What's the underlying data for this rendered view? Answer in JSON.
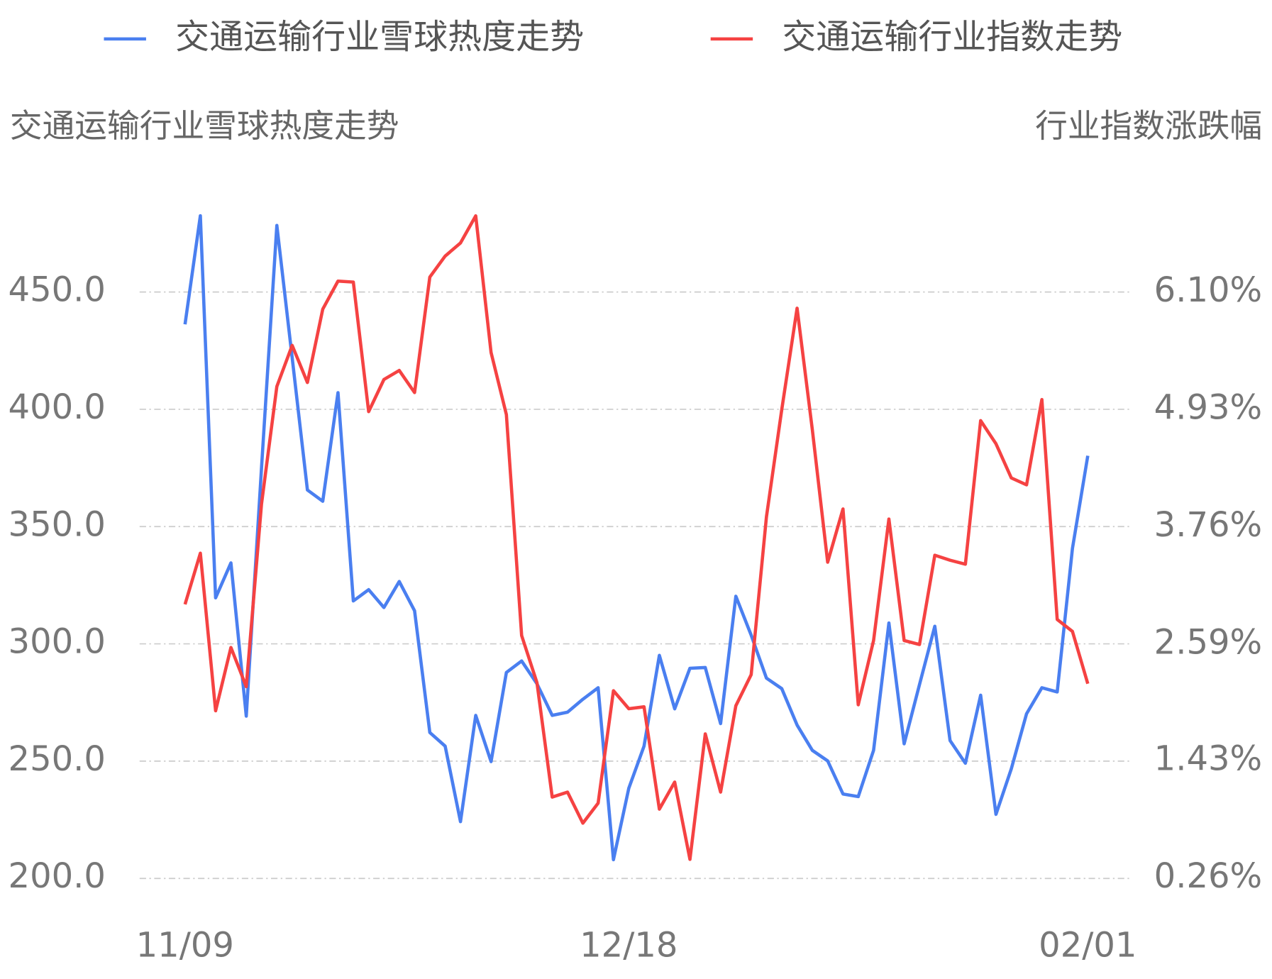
{
  "chart_data": {
    "type": "line",
    "y_label": "交通运输行业雪球热度走势",
    "y2_label": "行业指数涨跌幅",
    "categories": [
      "11/09",
      null,
      null,
      null,
      null,
      null,
      null,
      null,
      null,
      null,
      null,
      null,
      null,
      null,
      null,
      null,
      null,
      null,
      null,
      null,
      null,
      null,
      null,
      null,
      null,
      null,
      null,
      null,
      null,
      "12/18",
      null,
      null,
      null,
      null,
      null,
      null,
      null,
      null,
      null,
      null,
      null,
      null,
      null,
      null,
      null,
      null,
      null,
      null,
      null,
      null,
      null,
      null,
      null,
      null,
      null,
      null,
      null,
      null,
      null,
      "02/01"
    ],
    "series": [
      {
        "name": "交通运输行业雪球热度走势",
        "color": "#4a7ff0",
        "axis": "y",
        "values": [
          436.2,
          482.5,
          319.6,
          334.5,
          269.2,
          375,
          478.4,
          422,
          365.6,
          360.8,
          407.1,
          318.3,
          323.1,
          315.5,
          326.6,
          314.1,
          262.2,
          256.4,
          224.2,
          269.5,
          249.8,
          287.8,
          292.7,
          283.0,
          269.5,
          270.9,
          276.4,
          281.3,
          208.0,
          238.4,
          256.4,
          295.1,
          272.3,
          289.6,
          289.9,
          266.0,
          320.3,
          303.7,
          285.4,
          280.9,
          265.4,
          254.6,
          250.1,
          236.0,
          234.9,
          254.6,
          308.9,
          257.4,
          282.6,
          307.5,
          258.8,
          249.1,
          278.1,
          227.3,
          246.7,
          270.2,
          281.3,
          279.5,
          340.7,
          380.2
        ]
      },
      {
        "name": "交通运输行业指数走势",
        "color": "#f54242",
        "axis": "y2",
        "values": [
          2.99,
          3.5,
          1.93,
          2.56,
          2.17,
          3.99,
          5.16,
          5.57,
          5.2,
          5.93,
          6.21,
          6.2,
          4.91,
          5.23,
          5.32,
          5.1,
          6.25,
          6.46,
          6.59,
          6.86,
          5.5,
          4.88,
          2.68,
          2.21,
          1.07,
          1.12,
          0.81,
          1.01,
          2.13,
          1.95,
          1.97,
          0.95,
          1.22,
          0.45,
          1.7,
          1.12,
          1.98,
          2.29,
          3.86,
          4.93,
          5.94,
          4.73,
          3.41,
          3.94,
          1.99,
          2.63,
          3.84,
          2.63,
          2.59,
          3.48,
          3.43,
          3.39,
          4.82,
          4.59,
          4.25,
          4.18,
          5.03,
          2.84,
          2.72,
          2.2
        ]
      }
    ],
    "ylim": [
      200,
      500
    ],
    "yticks": [
      {
        "value": 200,
        "label": "200.0"
      },
      {
        "value": 250,
        "label": "250.0"
      },
      {
        "value": 300,
        "label": "300.0"
      },
      {
        "value": 350,
        "label": "350.0"
      },
      {
        "value": 400,
        "label": "400.0"
      },
      {
        "value": 450,
        "label": "450.0"
      }
    ],
    "y2lim": [
      0.26,
      7.27
    ],
    "y2ticks": [
      {
        "value": 0.26,
        "label": "0.26%"
      },
      {
        "value": 1.43,
        "label": "1.43%"
      },
      {
        "value": 2.59,
        "label": "2.59%"
      },
      {
        "value": 3.76,
        "label": "3.76%"
      },
      {
        "value": 4.93,
        "label": "4.93%"
      },
      {
        "value": 6.1,
        "label": "6.10%"
      }
    ],
    "grid": true,
    "legend": "top"
  }
}
